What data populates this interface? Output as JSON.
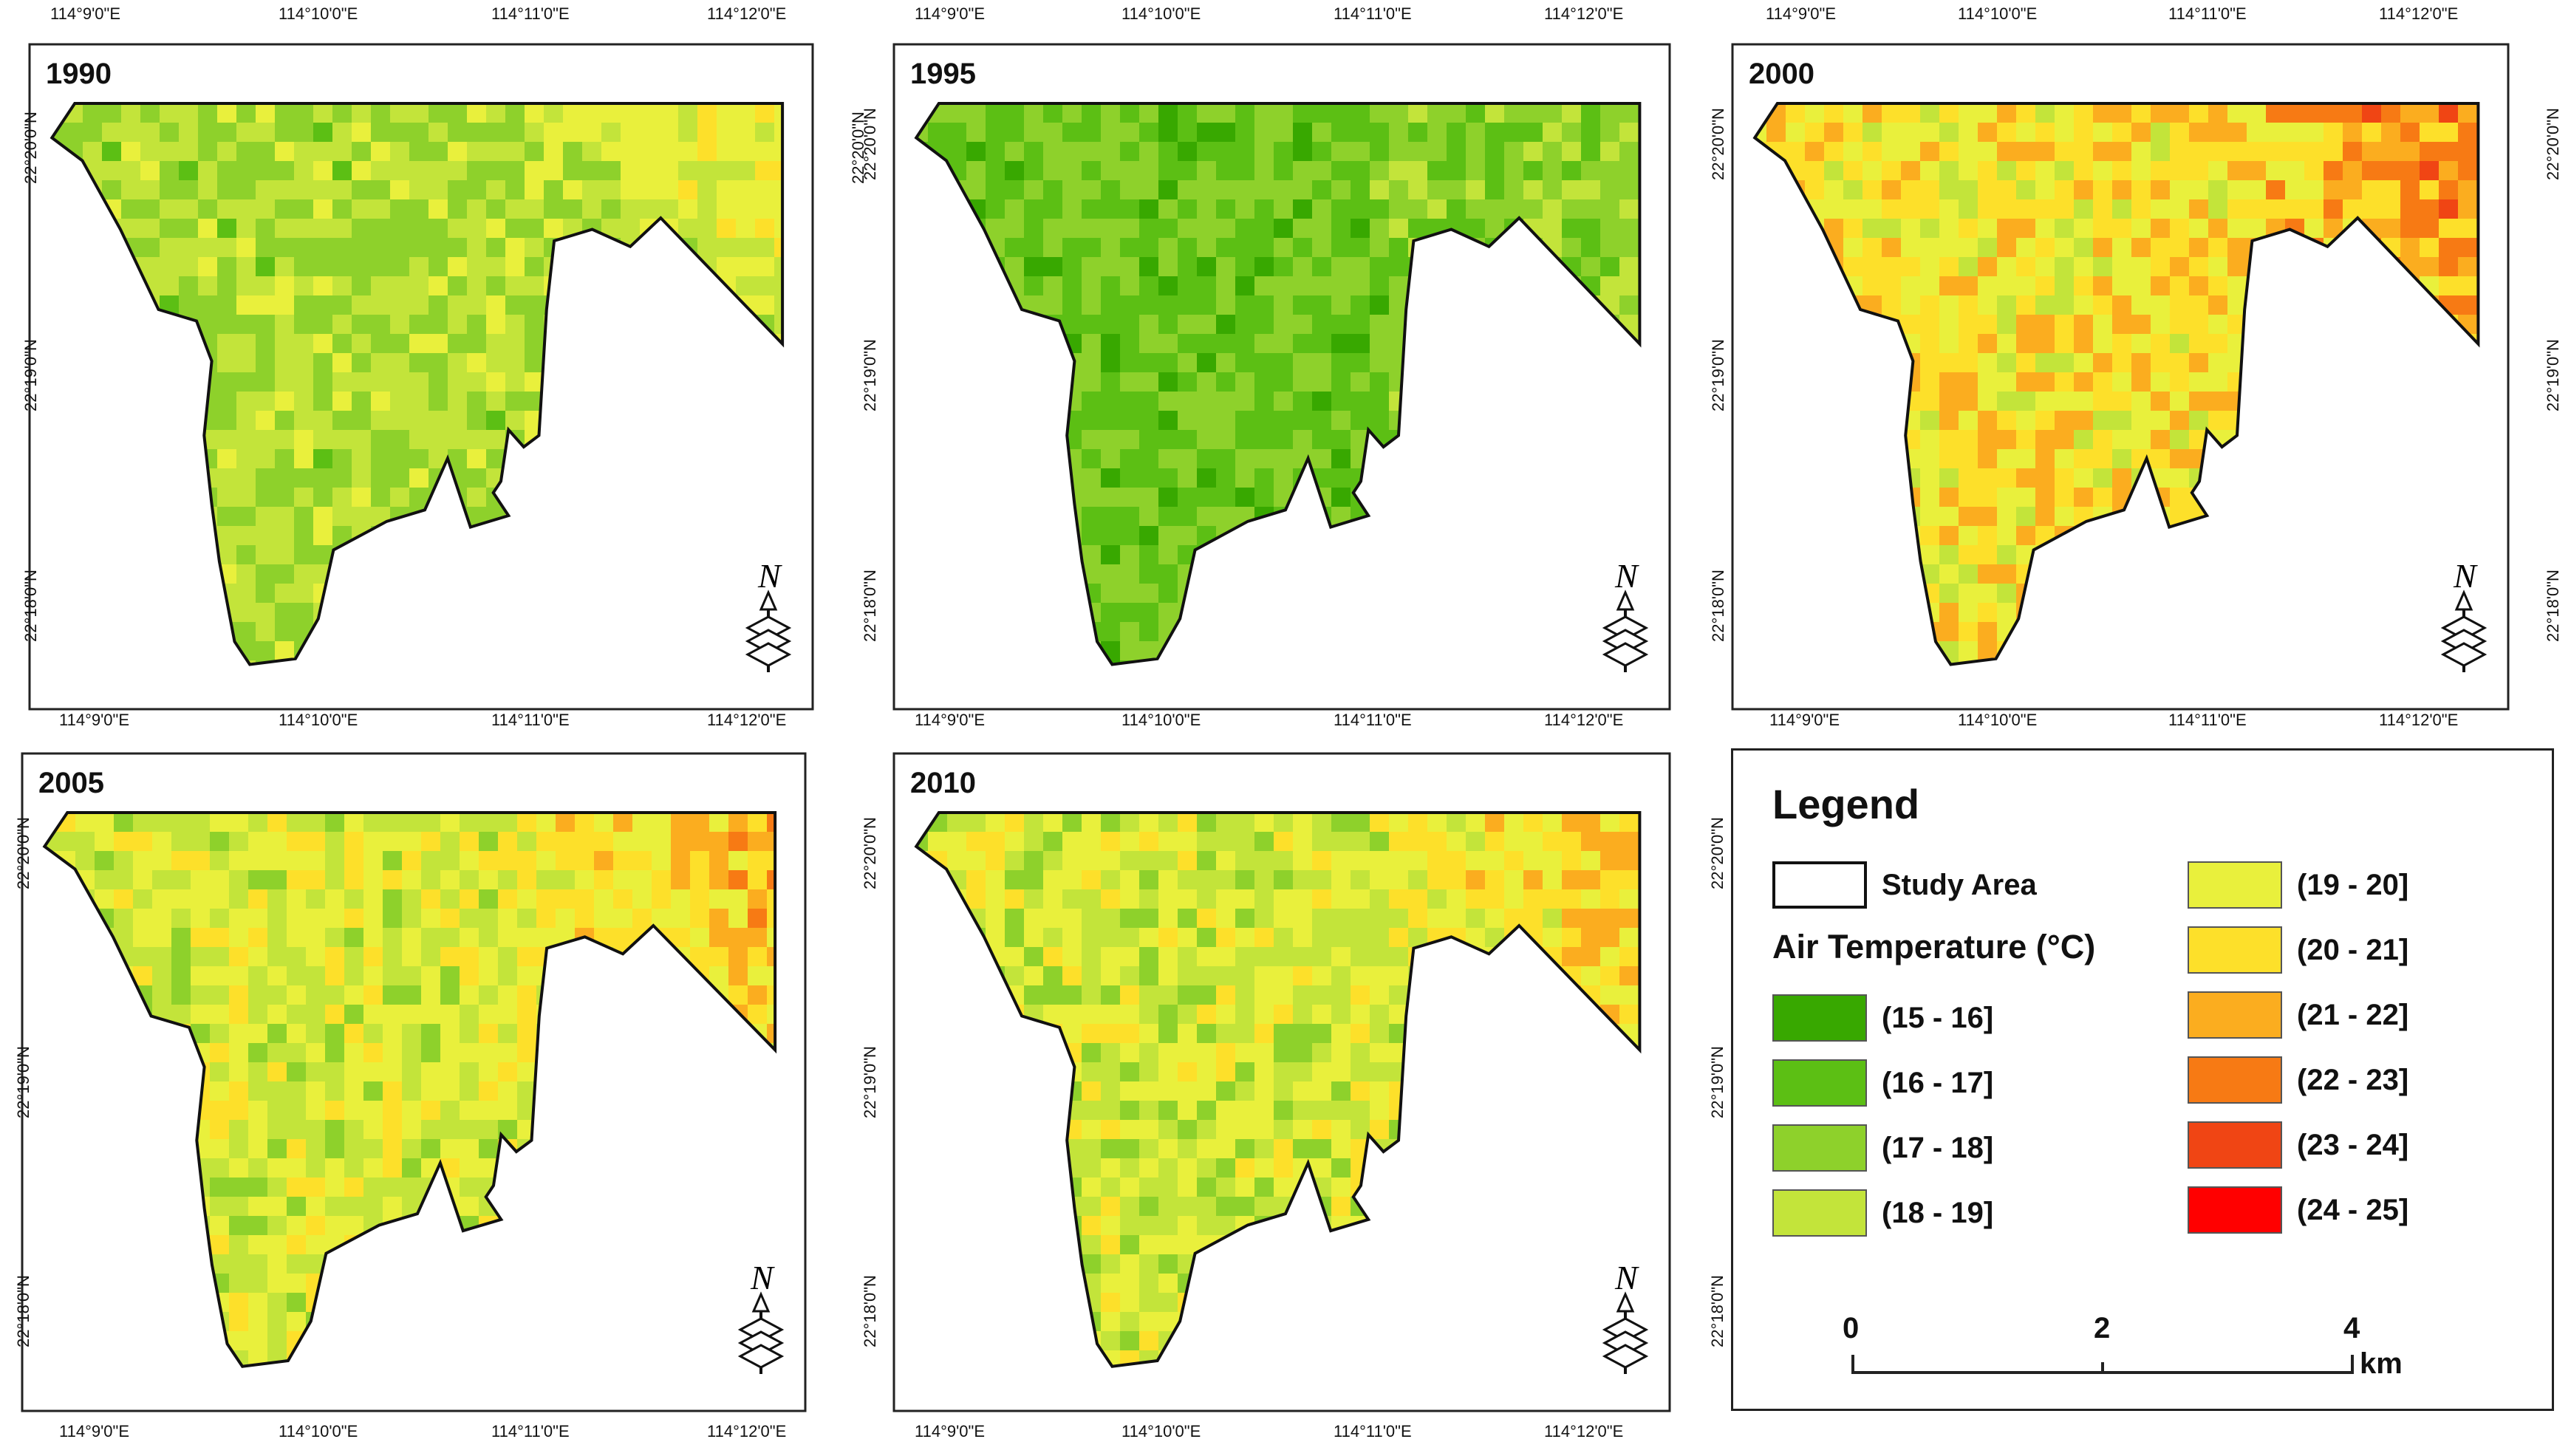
{
  "maps": [
    {
      "year": "1990",
      "id": "1990"
    },
    {
      "year": "1995",
      "id": "1995"
    },
    {
      "year": "2000",
      "id": "2000"
    },
    {
      "year": "2005",
      "id": "2005"
    },
    {
      "year": "2010",
      "id": "2010"
    }
  ],
  "axes": {
    "lon_ticks": [
      "114°9'0\"E",
      "114°10'0\"E",
      "114°11'0\"E",
      "114°12'0\"E"
    ],
    "lat_ticks": [
      "22°20'0\"N",
      "22°19'0\"N",
      "22°18'0\"N"
    ]
  },
  "north_arrow": "N",
  "legend": {
    "title": "Legend",
    "study_area": "Study Area",
    "temperature_title": "Air Temperature (°C)",
    "classes": [
      {
        "label": "(15 - 16]",
        "color": "#38a800"
      },
      {
        "label": "(16 - 17]",
        "color": "#5cbf14"
      },
      {
        "label": "(17 - 18]",
        "color": "#8ed12b"
      },
      {
        "label": "(18 - 19]",
        "color": "#c3e43a"
      },
      {
        "label": "(19 - 20]",
        "color": "#e9f03c"
      },
      {
        "label": "(20 - 21]",
        "color": "#fde02a"
      },
      {
        "label": "(21 - 22]",
        "color": "#fbad1f"
      },
      {
        "label": "(22 - 23]",
        "color": "#f77a14"
      },
      {
        "label": "(23 - 24]",
        "color": "#f04514"
      },
      {
        "label": "(24 - 25]",
        "color": "#ff0000"
      }
    ],
    "scale": {
      "labels": [
        "0",
        "2",
        "4"
      ],
      "unit": "km"
    }
  }
}
